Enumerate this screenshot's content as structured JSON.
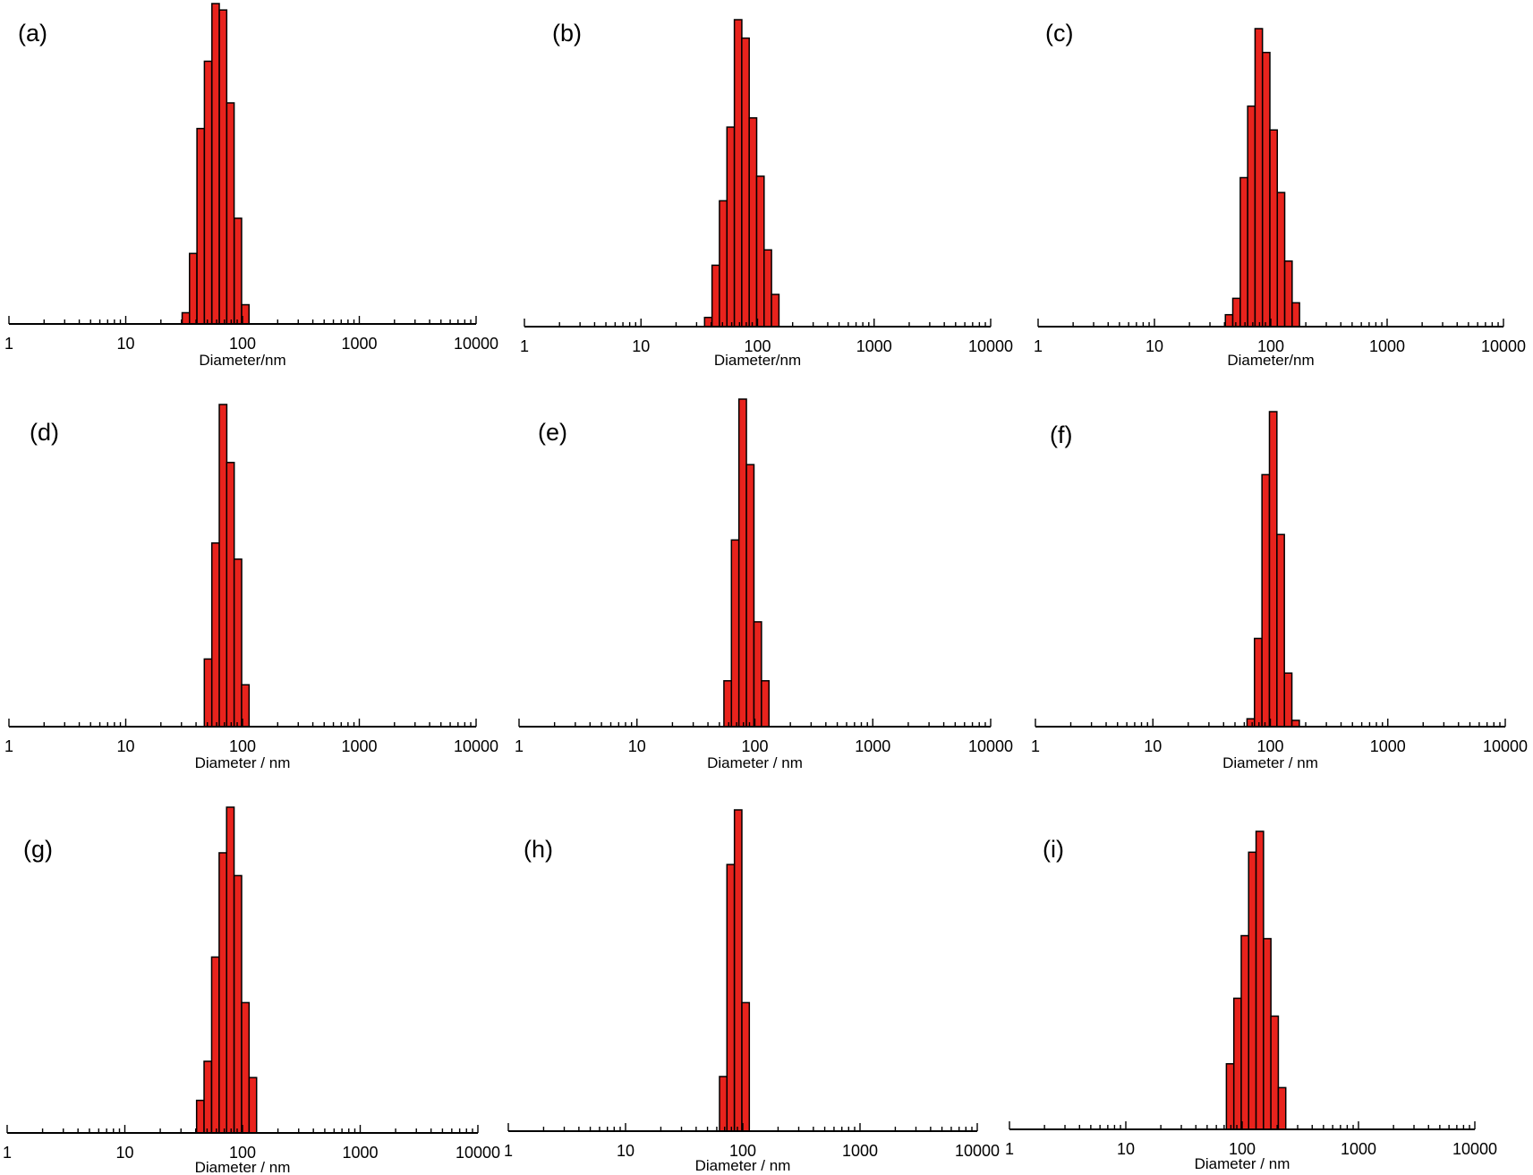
{
  "figure": {
    "bar_fill": "#e8231d",
    "bar_stroke": "#000000",
    "axis_color": "#000000",
    "x_scale": "log",
    "y_axis_visible": false
  },
  "chart_data": [
    {
      "panel_label": "(a)",
      "type": "bar",
      "x_scale": "log",
      "xlabel": "Diameter/nm",
      "xlim": [
        1,
        10000
      ],
      "xticks": [
        "1",
        "10",
        "100",
        "1000",
        "10000"
      ],
      "ylabel": "",
      "ylim": [
        0,
        100
      ],
      "diameters_nm": [
        32.7,
        37.8,
        43.8,
        50.7,
        58.8,
        68.1,
        78.8,
        91.3,
        105.7
      ],
      "values": [
        3.5,
        22,
        61,
        82,
        100,
        98,
        69,
        33,
        6
      ]
    },
    {
      "panel_label": "(b)",
      "type": "bar",
      "x_scale": "log",
      "xlabel": "Diameter/nm",
      "xlim": [
        1,
        10000
      ],
      "xticks": [
        "1",
        "10",
        "100",
        "1000",
        "10000"
      ],
      "ylabel": "",
      "ylim": [
        0,
        100
      ],
      "diameters_nm": [
        37.8,
        43.8,
        50.7,
        58.8,
        68.1,
        78.8,
        91.3,
        105.7,
        122.4,
        141.8
      ],
      "values": [
        3,
        20,
        41,
        65,
        100,
        94,
        68,
        49,
        25,
        10.5
      ]
    },
    {
      "panel_label": "(c)",
      "type": "bar",
      "x_scale": "log",
      "xlabel": "Diameter/nm",
      "xlim": [
        1,
        10000
      ],
      "xticks": [
        "1",
        "10",
        "100",
        "1000",
        "10000"
      ],
      "ylabel": "",
      "ylim": [
        0,
        100
      ],
      "diameters_nm": [
        43.8,
        50.7,
        58.8,
        68.1,
        78.8,
        91.3,
        105.7,
        122.4,
        141.8,
        164.2
      ],
      "values": [
        4,
        9.5,
        50,
        74,
        100,
        92,
        66,
        45,
        22,
        8
      ]
    },
    {
      "panel_label": "(d)",
      "type": "bar",
      "x_scale": "log",
      "xlabel": "Diameter / nm",
      "xlim": [
        1,
        10000
      ],
      "xticks": [
        "1",
        "10",
        "100",
        "1000",
        "10000"
      ],
      "ylabel": "",
      "ylim": [
        0,
        100
      ],
      "diameters_nm": [
        50.7,
        58.8,
        68.1,
        78.8,
        91.3,
        105.7
      ],
      "values": [
        21,
        57,
        100,
        82,
        52,
        13
      ]
    },
    {
      "panel_label": "(e)",
      "type": "bar",
      "x_scale": "log",
      "xlabel": "Diameter / nm",
      "xlim": [
        1,
        10000
      ],
      "xticks": [
        "1",
        "10",
        "100",
        "1000",
        "10000"
      ],
      "ylabel": "",
      "ylim": [
        0,
        100
      ],
      "diameters_nm": [
        58.8,
        68.1,
        78.8,
        91.3,
        105.7,
        122.4
      ],
      "values": [
        14,
        57,
        100,
        80,
        32,
        14
      ]
    },
    {
      "panel_label": "(f)",
      "type": "bar",
      "x_scale": "log",
      "xlabel": "Diameter / nm",
      "xlim": [
        1,
        10000
      ],
      "xticks": [
        "1",
        "10",
        "100",
        "1000",
        "10000"
      ],
      "ylabel": "",
      "ylim": [
        0,
        100
      ],
      "diameters_nm": [
        68.1,
        78.8,
        91.3,
        105.7,
        122.4,
        141.8,
        164.2
      ],
      "values": [
        2.5,
        28,
        80,
        100,
        61,
        17,
        2
      ]
    },
    {
      "panel_label": "(g)",
      "type": "bar",
      "x_scale": "log",
      "xlabel": "Diameter / nm",
      "xlim": [
        1,
        10000
      ],
      "xticks": [
        "1",
        "10",
        "100",
        "1000",
        "10000"
      ],
      "ylabel": "",
      "ylim": [
        0,
        100
      ],
      "diameters_nm": [
        43.8,
        50.7,
        58.8,
        68.1,
        78.8,
        91.3,
        105.7,
        122.4
      ],
      "values": [
        10,
        22,
        54,
        86,
        100,
        79,
        40,
        17
      ]
    },
    {
      "panel_label": "(h)",
      "type": "bar",
      "x_scale": "log",
      "xlabel": "Diameter / nm",
      "xlim": [
        1,
        10000
      ],
      "xticks": [
        "1",
        "10",
        "100",
        "1000",
        "10000"
      ],
      "ylabel": "",
      "ylim": [
        0,
        100
      ],
      "diameters_nm": [
        68.1,
        78.8,
        91.3,
        105.7
      ],
      "values": [
        17,
        83,
        100,
        40
      ]
    },
    {
      "panel_label": "(i)",
      "type": "bar",
      "x_scale": "log",
      "xlabel": "Diameter / nm",
      "xlim": [
        1,
        10000
      ],
      "xticks": [
        "1",
        "10",
        "100",
        "1000",
        "10000"
      ],
      "ylabel": "",
      "ylim": [
        0,
        100
      ],
      "diameters_nm": [
        78.8,
        91.3,
        105.7,
        122.4,
        141.8,
        164.2,
        190.1,
        220.2
      ],
      "values": [
        22,
        44,
        65,
        93,
        100,
        64,
        38,
        14
      ]
    }
  ]
}
